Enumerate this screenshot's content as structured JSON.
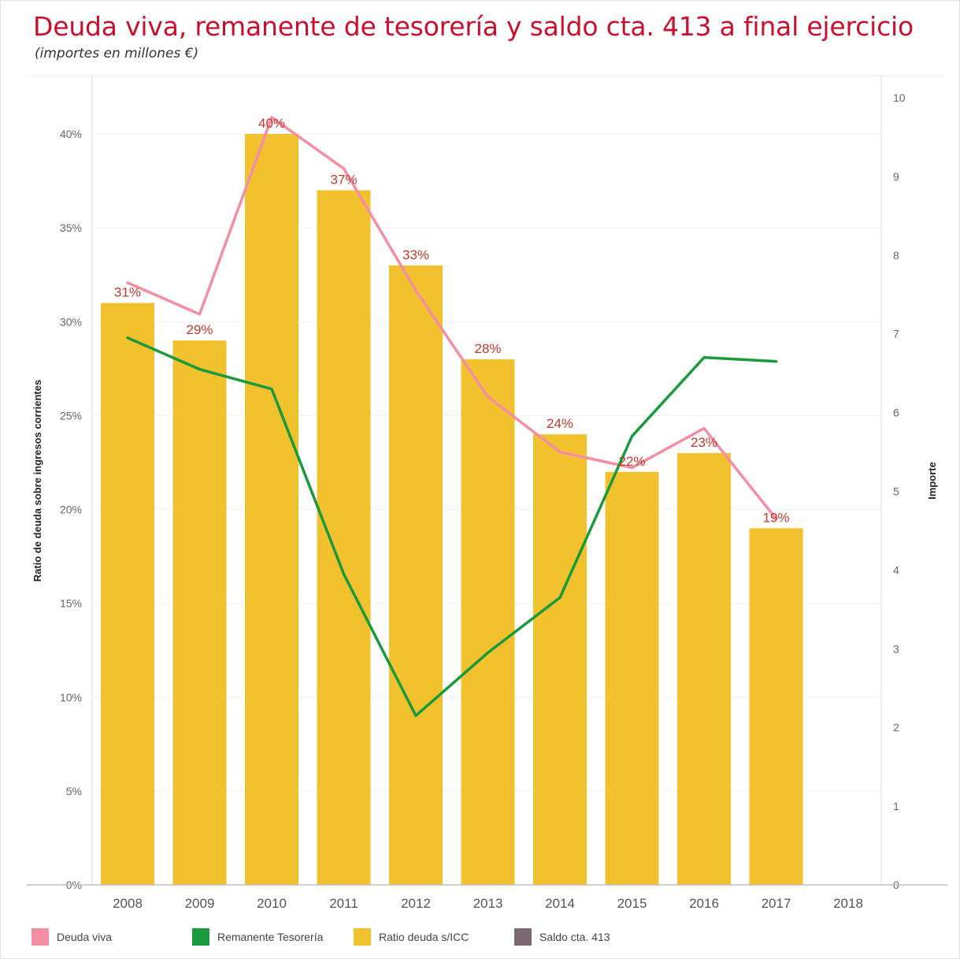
{
  "header": {
    "title": "Deuda viva, remanente de tesorería y saldo cta. 413  a final ejercicio",
    "subtitle": "(importes en millones €)"
  },
  "colors": {
    "title": "#c8102e",
    "deuda_viva": "#f28fa4",
    "remanente": "#1a9a3c",
    "ratio": "#f2c12e",
    "saldo": "#7a6a72",
    "data_label": "#c0392b"
  },
  "legend": {
    "items": [
      {
        "label": "Deuda viva",
        "color": "#f28fa4"
      },
      {
        "label": "Remanente Tesorería",
        "color": "#1a9a3c"
      },
      {
        "label": "Ratio deuda s/ICC",
        "color": "#f2c12e"
      },
      {
        "label": "Saldo cta. 413",
        "color": "#7a6a72"
      }
    ]
  },
  "chart_data": {
    "type": "bar",
    "categories": [
      "2008",
      "2009",
      "2010",
      "2011",
      "2012",
      "2013",
      "2014",
      "2015",
      "2016",
      "2017",
      "2018"
    ],
    "left_axis": {
      "label": "Ratio de deuda sobre ingresos corrientes",
      "ylim": [
        0,
        0.42
      ],
      "ticks": [
        0,
        0.05,
        0.1,
        0.15,
        0.2,
        0.25,
        0.3,
        0.35,
        0.4
      ],
      "tick_labels": [
        "0%",
        "5%",
        "10%",
        "15%",
        "20%",
        "25%",
        "30%",
        "35%",
        "40%"
      ]
    },
    "right_axis": {
      "label": "Importe",
      "ylim": [
        0,
        10
      ],
      "ticks": [
        0,
        1,
        2,
        3,
        4,
        5,
        6,
        7,
        8,
        9,
        10
      ],
      "tick_labels": [
        "0",
        "1",
        "2",
        "3",
        "4",
        "5",
        "6",
        "7",
        "8",
        "9",
        "10"
      ]
    },
    "series": [
      {
        "name": "Ratio deuda s/ICC",
        "type": "bar",
        "axis": "left",
        "values": [
          0.31,
          0.29,
          0.4,
          0.37,
          0.33,
          0.28,
          0.24,
          0.22,
          0.23,
          0.19,
          null
        ],
        "labels": [
          "31%",
          "29%",
          "40%",
          "37%",
          "33%",
          "28%",
          "24%",
          "22%",
          "23%",
          "19%",
          ""
        ]
      },
      {
        "name": "Deuda viva",
        "type": "line",
        "axis": "right",
        "values": [
          7.65,
          7.25,
          9.75,
          9.1,
          7.55,
          6.2,
          5.5,
          5.3,
          5.8,
          4.65,
          null
        ]
      },
      {
        "name": "Remanente Tesorería",
        "type": "line",
        "axis": "right",
        "values": [
          6.95,
          6.55,
          6.3,
          3.95,
          2.15,
          2.95,
          3.65,
          5.7,
          6.7,
          6.65,
          null
        ]
      },
      {
        "name": "Saldo cta. 413",
        "type": "line",
        "axis": "right",
        "values": [
          null,
          null,
          null,
          null,
          null,
          null,
          null,
          null,
          null,
          null,
          null
        ]
      }
    ],
    "grid": true,
    "legend_position": "bottom"
  }
}
